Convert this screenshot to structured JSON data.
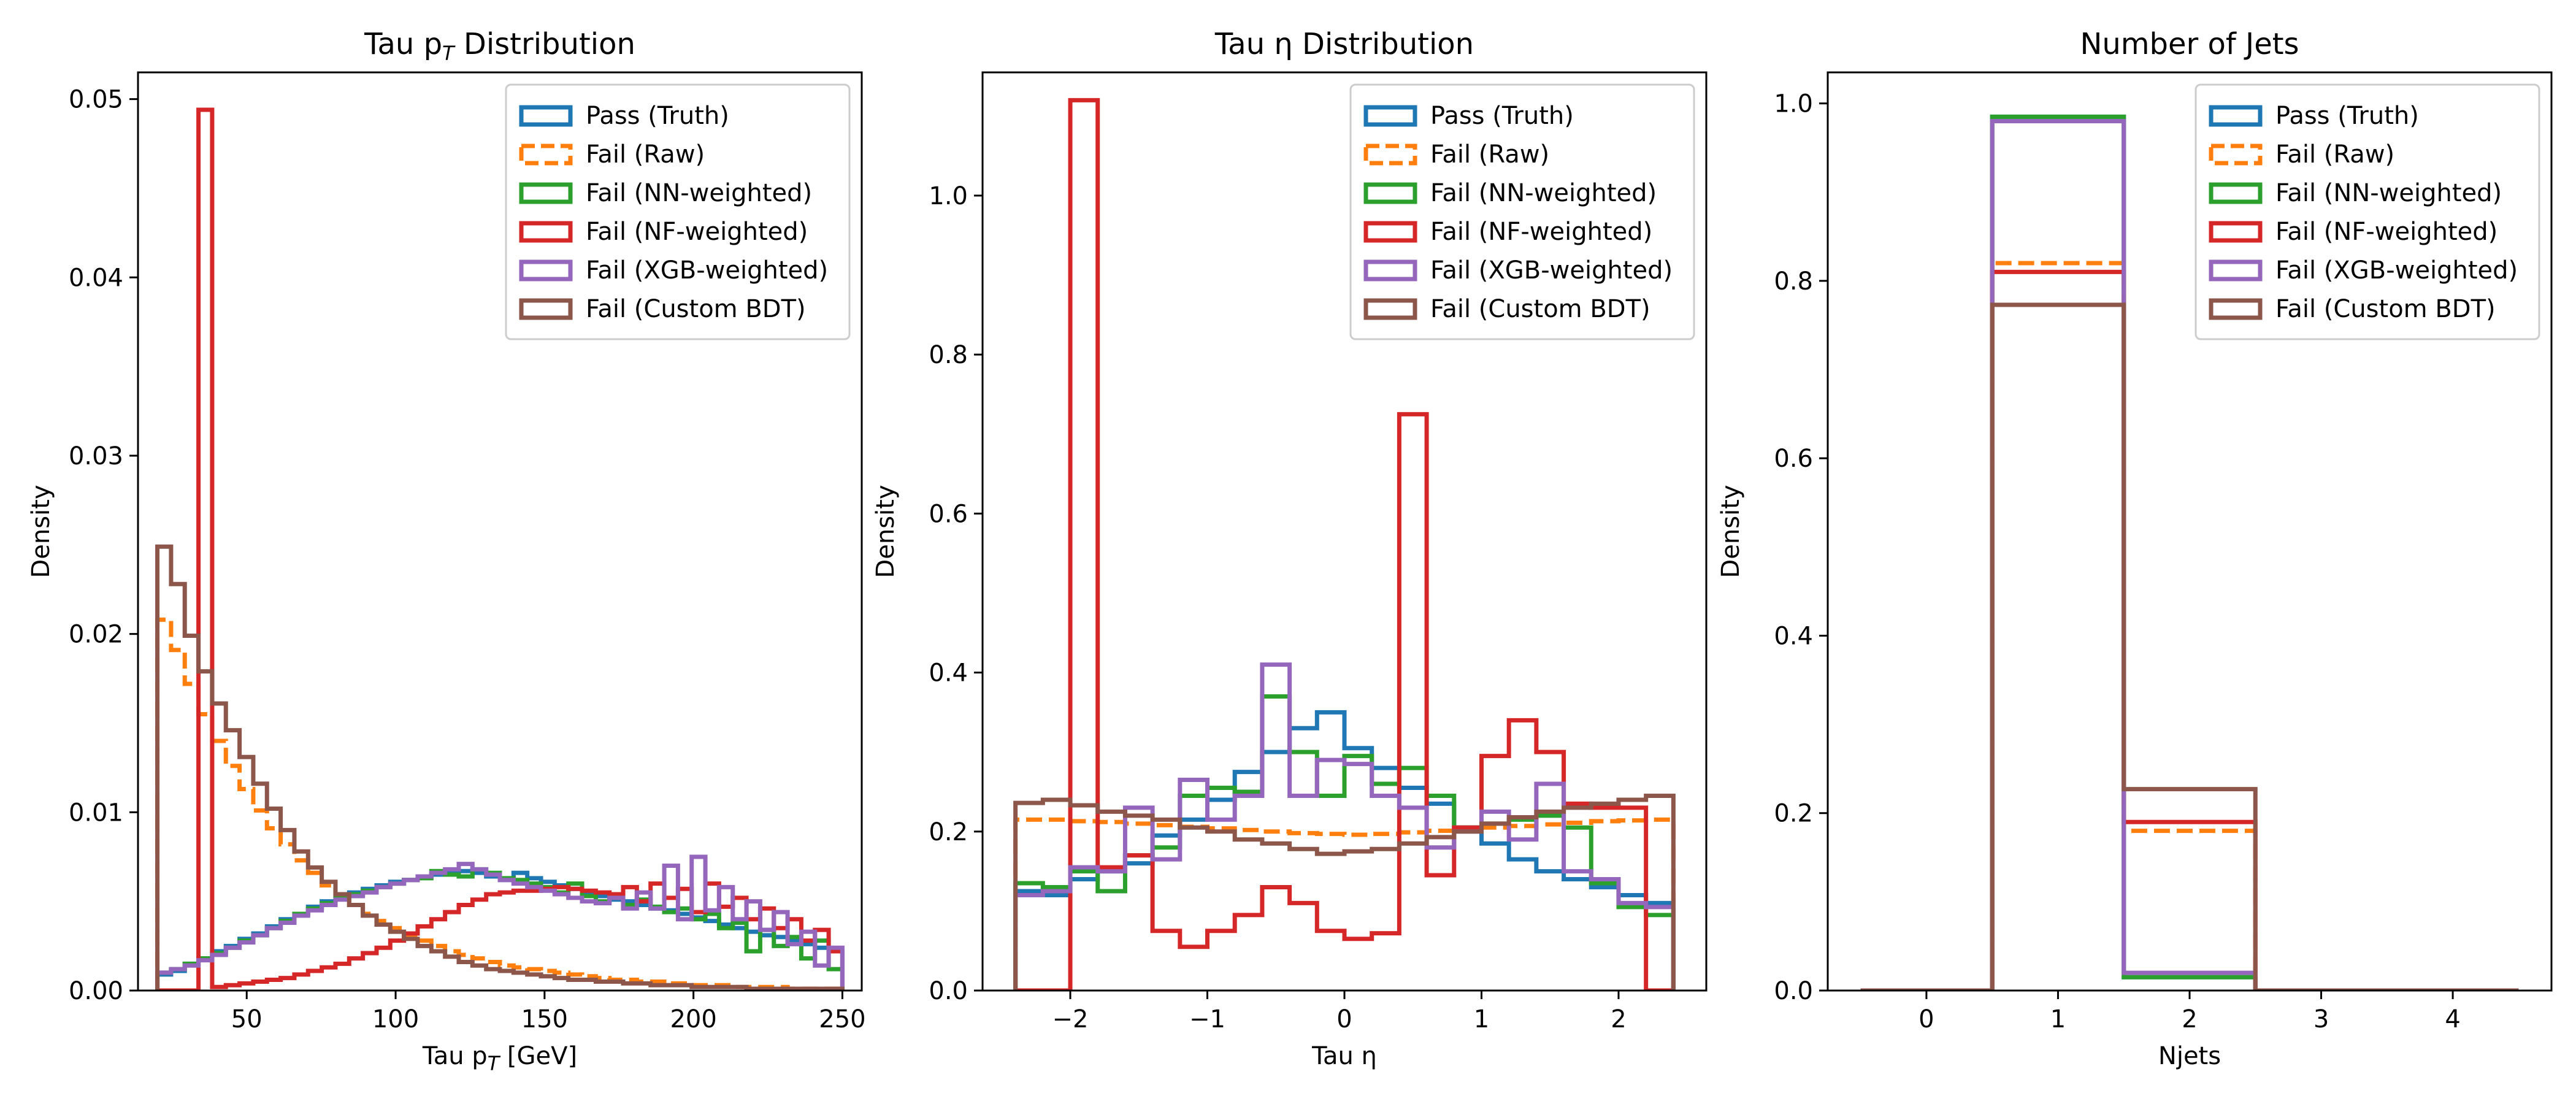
{
  "legend_labels": [
    "Pass (Truth)",
    "Fail (Raw)",
    "Fail (NN-weighted)",
    "Fail (NF-weighted)",
    "Fail (XGB-weighted)",
    "Fail (Custom BDT)"
  ],
  "series_colors": [
    "#1f77b4",
    "#ff7f0e",
    "#2ca02c",
    "#d62728",
    "#9467bd",
    "#8c564b"
  ],
  "series_dashed": [
    false,
    true,
    false,
    false,
    false,
    false
  ],
  "chart_data": [
    {
      "type": "histogram-step",
      "title": "Tau pT Distribution",
      "title_main": "Tau p",
      "title_sub": "T",
      "title_rest": " Distribution",
      "xlabel": "Tau pT [GeV]",
      "xlabel_main": "Tau p",
      "xlabel_sub": "T",
      "xlabel_rest": " [GeV]",
      "ylabel": "Density",
      "xlim": [
        13.5,
        256.5
      ],
      "ylim": [
        0,
        0.0515
      ],
      "xticks": [
        50,
        100,
        150,
        200,
        250
      ],
      "xtick_labels": [
        "50",
        "100",
        "150",
        "200",
        "250"
      ],
      "yticks": [
        0,
        0.01,
        0.02,
        0.03,
        0.04,
        0.05
      ],
      "ytick_labels": [
        "0.00",
        "0.01",
        "0.02",
        "0.03",
        "0.04",
        "0.05"
      ],
      "legend_position": "top-right",
      "bin_range": [
        20,
        250
      ],
      "n_bins": 50,
      "series": [
        {
          "name": "Pass (Truth)",
          "values": [
            0.0009,
            0.0011,
            0.0015,
            0.0018,
            0.0022,
            0.0025,
            0.0029,
            0.0032,
            0.0036,
            0.004,
            0.0043,
            0.0047,
            0.005,
            0.0052,
            0.0055,
            0.0057,
            0.0059,
            0.0061,
            0.0062,
            0.0064,
            0.0065,
            0.0066,
            0.0067,
            0.0066,
            0.0064,
            0.0062,
            0.0066,
            0.0063,
            0.0061,
            0.0059,
            0.0057,
            0.0055,
            0.0053,
            0.0051,
            0.005,
            0.0048,
            0.0046,
            0.0045,
            0.0043,
            0.0041,
            0.0039,
            0.0037,
            0.0035,
            0.0033,
            0.0031,
            0.003,
            0.0028,
            0.0026,
            0.0024,
            0.0022
          ]
        },
        {
          "name": "Fail (Raw)",
          "values": [
            0.0208,
            0.0191,
            0.0172,
            0.0155,
            0.014,
            0.0126,
            0.0113,
            0.0101,
            0.0091,
            0.0082,
            0.0073,
            0.0066,
            0.0059,
            0.0053,
            0.0048,
            0.0043,
            0.0039,
            0.0035,
            0.0031,
            0.0028,
            0.0025,
            0.0022,
            0.002,
            0.0018,
            0.0016,
            0.0014,
            0.0013,
            0.0012,
            0.0011,
            0.001,
            0.0009,
            0.0008,
            0.0007,
            0.0006,
            0.0006,
            0.0005,
            0.0005,
            0.0004,
            0.0004,
            0.0003,
            0.0003,
            0.0003,
            0.0002,
            0.0002,
            0.0002,
            0.0002,
            0.0001,
            0.0001,
            0.0001,
            0.0001
          ]
        },
        {
          "name": "Fail (NN-weighted)",
          "values": [
            0.001,
            0.0012,
            0.0015,
            0.0018,
            0.0021,
            0.0024,
            0.0028,
            0.0031,
            0.0035,
            0.0039,
            0.0043,
            0.0046,
            0.0049,
            0.0052,
            0.0054,
            0.0056,
            0.0058,
            0.006,
            0.0062,
            0.0063,
            0.0067,
            0.0065,
            0.0064,
            0.0068,
            0.0066,
            0.0063,
            0.0062,
            0.006,
            0.0058,
            0.0055,
            0.006,
            0.0053,
            0.005,
            0.0052,
            0.0048,
            0.0051,
            0.0047,
            0.0044,
            0.0046,
            0.004,
            0.0043,
            0.0035,
            0.0038,
            0.0022,
            0.0034,
            0.0025,
            0.003,
            0.0018,
            0.0028,
            0.0012
          ]
        },
        {
          "name": "Fail (NF-weighted)",
          "values": [
            0.0,
            0.0,
            0.0,
            0.0494,
            0.0002,
            0.0003,
            0.0004,
            0.0005,
            0.0006,
            0.0007,
            0.0009,
            0.0011,
            0.0013,
            0.0015,
            0.0018,
            0.0021,
            0.0024,
            0.0028,
            0.0032,
            0.0036,
            0.004,
            0.0044,
            0.0048,
            0.0051,
            0.0054,
            0.0055,
            0.0056,
            0.0056,
            0.0057,
            0.0058,
            0.0057,
            0.0056,
            0.0055,
            0.0054,
            0.0058,
            0.005,
            0.006,
            0.0052,
            0.0057,
            0.0044,
            0.006,
            0.0047,
            0.0052,
            0.004,
            0.0046,
            0.0035,
            0.004,
            0.0028,
            0.0034,
            0.0022
          ]
        },
        {
          "name": "Fail (XGB-weighted)",
          "values": [
            0.001,
            0.0012,
            0.0014,
            0.0017,
            0.002,
            0.0024,
            0.0027,
            0.0031,
            0.0035,
            0.0038,
            0.0042,
            0.0045,
            0.0048,
            0.0051,
            0.0053,
            0.0055,
            0.0058,
            0.006,
            0.0062,
            0.0064,
            0.0066,
            0.0068,
            0.0071,
            0.0068,
            0.0065,
            0.0062,
            0.006,
            0.0058,
            0.0056,
            0.0054,
            0.0052,
            0.005,
            0.0049,
            0.0052,
            0.0046,
            0.0055,
            0.0046,
            0.007,
            0.004,
            0.0075,
            0.0045,
            0.0058,
            0.004,
            0.005,
            0.0034,
            0.0044,
            0.0026,
            0.0033,
            0.0014,
            0.0024
          ]
        },
        {
          "name": "Fail (Custom BDT)",
          "values": [
            0.0249,
            0.0228,
            0.0199,
            0.0179,
            0.0161,
            0.0146,
            0.0131,
            0.0116,
            0.0102,
            0.009,
            0.0078,
            0.0069,
            0.0061,
            0.0054,
            0.0048,
            0.0042,
            0.0037,
            0.0033,
            0.0029,
            0.0025,
            0.0022,
            0.0019,
            0.0016,
            0.0014,
            0.0012,
            0.0011,
            0.001,
            0.0009,
            0.0008,
            0.0007,
            0.0006,
            0.0006,
            0.0005,
            0.0005,
            0.0004,
            0.0004,
            0.0003,
            0.0003,
            0.0003,
            0.0002,
            0.0002,
            0.0002,
            0.0002,
            0.0001,
            0.0001,
            0.0001,
            0.0001,
            0.0001,
            0.0001,
            0.0001
          ]
        }
      ]
    },
    {
      "type": "histogram-step",
      "title": "Tau η Distribution",
      "title_main": "Tau η Distribution",
      "xlabel": "Tau η",
      "xlabel_main": "Tau η",
      "ylabel": "Density",
      "xlim": [
        -2.64,
        2.64
      ],
      "ylim": [
        0,
        1.155
      ],
      "xticks": [
        -2,
        -1,
        0,
        1,
        2
      ],
      "xtick_labels": [
        "−2",
        "−1",
        "0",
        "1",
        "2"
      ],
      "yticks": [
        0,
        0.2,
        0.4,
        0.6,
        0.8,
        1.0
      ],
      "ytick_labels": [
        "0.0",
        "0.2",
        "0.4",
        "0.6",
        "0.8",
        "1.0"
      ],
      "legend_position": "top-right",
      "bin_range": [
        -2.4,
        2.4
      ],
      "n_bins": 24,
      "series": [
        {
          "name": "Pass (Truth)",
          "values": [
            0.125,
            0.12,
            0.14,
            0.15,
            0.16,
            0.195,
            0.215,
            0.24,
            0.275,
            0.3,
            0.33,
            0.35,
            0.305,
            0.28,
            0.255,
            0.235,
            0.205,
            0.185,
            0.165,
            0.15,
            0.14,
            0.13,
            0.12,
            0.11
          ]
        },
        {
          "name": "Fail (Raw)",
          "values": [
            0.215,
            0.215,
            0.213,
            0.212,
            0.21,
            0.208,
            0.206,
            0.204,
            0.202,
            0.2,
            0.198,
            0.197,
            0.196,
            0.197,
            0.199,
            0.201,
            0.203,
            0.205,
            0.207,
            0.209,
            0.211,
            0.213,
            0.214,
            0.215
          ]
        },
        {
          "name": "Fail (NN-weighted)",
          "values": [
            0.135,
            0.13,
            0.15,
            0.125,
            0.17,
            0.18,
            0.245,
            0.255,
            0.25,
            0.37,
            0.3,
            0.245,
            0.295,
            0.26,
            0.28,
            0.245,
            0.205,
            0.21,
            0.215,
            0.22,
            0.205,
            0.135,
            0.105,
            0.095
          ]
        },
        {
          "name": "Fail (NF-weighted)",
          "values": [
            0.0,
            0.0,
            1.12,
            0.155,
            0.17,
            0.075,
            0.055,
            0.075,
            0.095,
            0.13,
            0.11,
            0.075,
            0.065,
            0.072,
            0.725,
            0.145,
            0.205,
            0.295,
            0.34,
            0.3,
            0.235,
            0.23,
            0.23,
            0.0
          ]
        },
        {
          "name": "Fail (XGB-weighted)",
          "values": [
            0.12,
            0.125,
            0.155,
            0.15,
            0.23,
            0.165,
            0.265,
            0.215,
            0.245,
            0.41,
            0.245,
            0.29,
            0.285,
            0.245,
            0.23,
            0.18,
            0.2,
            0.225,
            0.19,
            0.26,
            0.15,
            0.14,
            0.11,
            0.105
          ]
        },
        {
          "name": "Fail (Custom BDT)",
          "values": [
            0.236,
            0.24,
            0.233,
            0.225,
            0.22,
            0.215,
            0.205,
            0.2,
            0.19,
            0.185,
            0.178,
            0.172,
            0.175,
            0.178,
            0.185,
            0.193,
            0.2,
            0.21,
            0.218,
            0.225,
            0.23,
            0.235,
            0.24,
            0.245
          ]
        }
      ]
    },
    {
      "type": "histogram-step",
      "title": "Number of Jets",
      "title_main": "Number of Jets",
      "xlabel": "Njets",
      "xlabel_main": "Njets",
      "ylabel": "Density",
      "xlim": [
        -0.75,
        4.75
      ],
      "ylim": [
        0,
        1.035
      ],
      "xticks": [
        0,
        1,
        2,
        3,
        4
      ],
      "xtick_labels": [
        "0",
        "1",
        "2",
        "3",
        "4"
      ],
      "yticks": [
        0,
        0.2,
        0.4,
        0.6,
        0.8,
        1.0
      ],
      "ytick_labels": [
        "0.0",
        "0.2",
        "0.4",
        "0.6",
        "0.8",
        "1.0"
      ],
      "legend_position": "top-right",
      "bin_range": [
        -0.5,
        4.5
      ],
      "n_bins": 5,
      "series": [
        {
          "name": "Pass (Truth)",
          "values": [
            0.0,
            0.985,
            0.015,
            0.0,
            0.0
          ]
        },
        {
          "name": "Fail (Raw)",
          "values": [
            0.0,
            0.82,
            0.18,
            0.0,
            0.0
          ]
        },
        {
          "name": "Fail (NN-weighted)",
          "values": [
            0.0,
            0.985,
            0.015,
            0.0,
            0.0
          ]
        },
        {
          "name": "Fail (NF-weighted)",
          "values": [
            0.0,
            0.81,
            0.19,
            0.0,
            0.0
          ]
        },
        {
          "name": "Fail (XGB-weighted)",
          "values": [
            0.0,
            0.98,
            0.02,
            0.0,
            0.0
          ]
        },
        {
          "name": "Fail (Custom BDT)",
          "values": [
            0.0,
            0.773,
            0.227,
            0.0,
            0.0
          ]
        }
      ]
    }
  ]
}
